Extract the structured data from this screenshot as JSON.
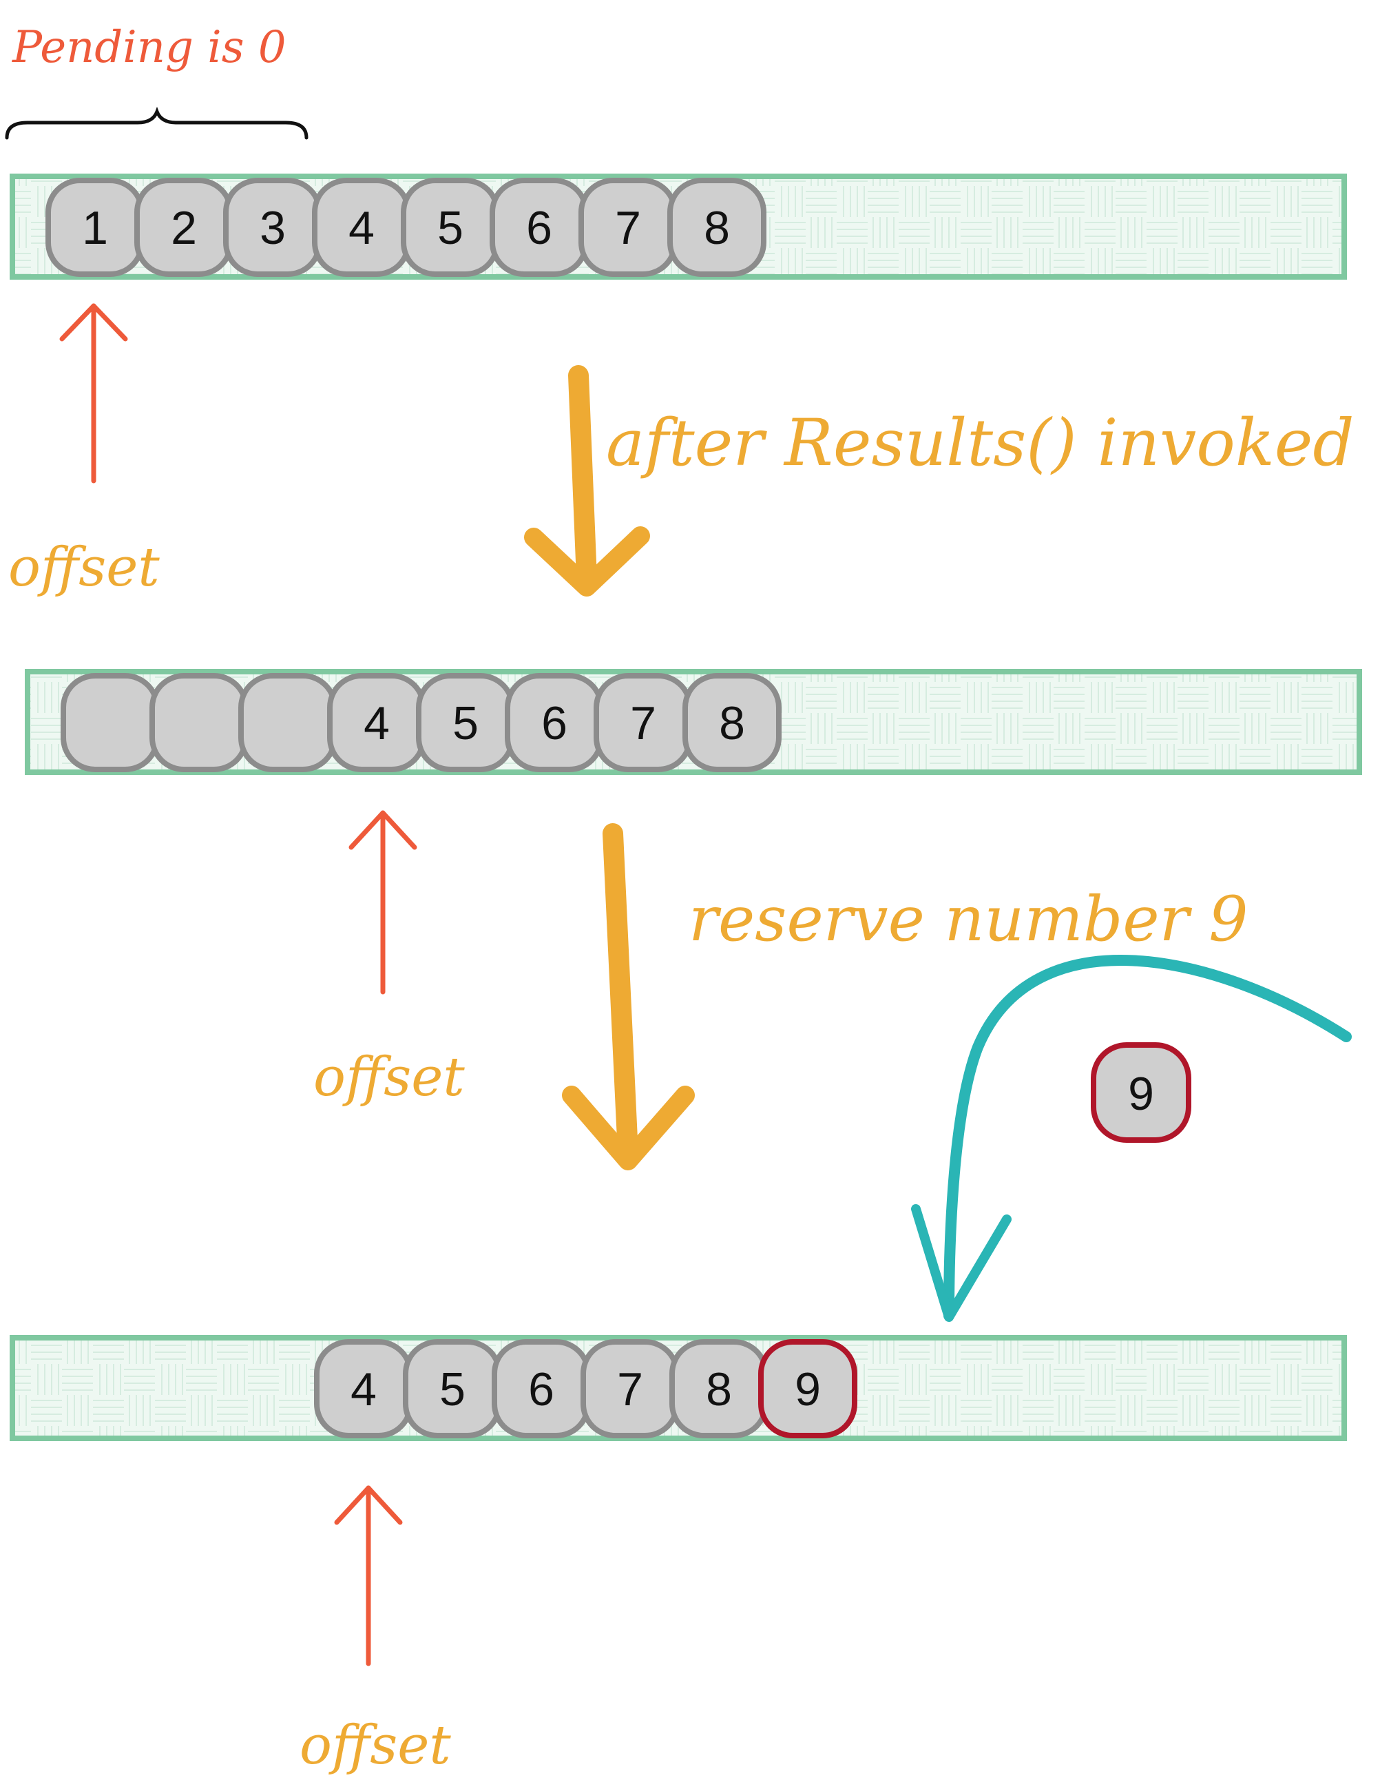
{
  "colors": {
    "buffer_stroke": "#7fc8a0",
    "buffer_fill": "#eef8f2",
    "cell_fill": "#cfcfcf",
    "cell_stroke": "#8c8c8c",
    "new_cell_stroke": "#b0162a",
    "offset_arrow": "#ee5a3a",
    "pending_label": "#ee5a3a",
    "step_arrow": "#eeaa33",
    "insert_arrow": "#2ab5b5"
  },
  "pending_label": "Pending is 0",
  "step_1_label": "after Results() invoked",
  "step_2_label": "reserve number 9",
  "offset_labels": [
    "offset",
    "offset",
    "offset"
  ],
  "incoming_item": "9",
  "buffers": [
    {
      "cells": [
        "1",
        "2",
        "3",
        "4",
        "5",
        "6",
        "7",
        "8"
      ],
      "new_cells": []
    },
    {
      "cells": [
        "",
        "",
        "",
        "4",
        "5",
        "6",
        "7",
        "8"
      ],
      "new_cells": []
    },
    {
      "cells": [
        "4",
        "5",
        "6",
        "7",
        "8",
        "9"
      ],
      "new_cells": [
        "9"
      ]
    }
  ]
}
